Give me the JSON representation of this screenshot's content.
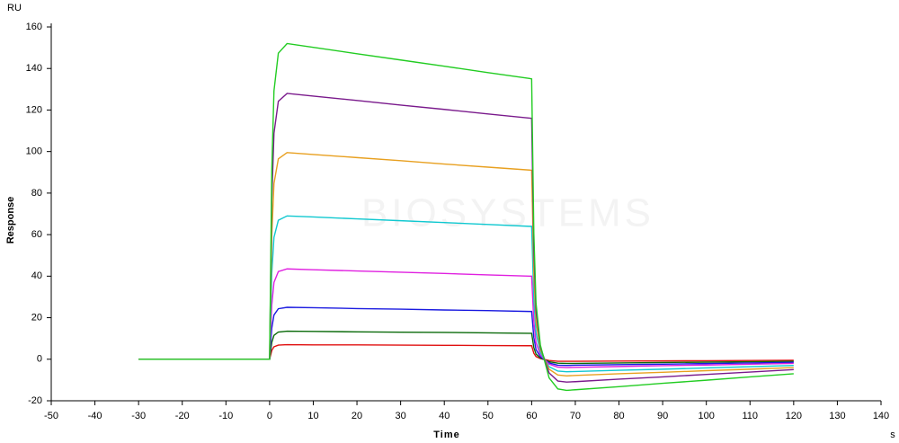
{
  "chart_data": {
    "type": "line",
    "y_unit": "RU",
    "y_label": "Response",
    "x_label": "Time",
    "x_unit": "s",
    "watermark": "BIOSYSTEMS",
    "xlim": [
      -50,
      140
    ],
    "xticks": [
      -50,
      -40,
      -30,
      -20,
      -10,
      0,
      10,
      20,
      30,
      40,
      50,
      60,
      70,
      80,
      90,
      100,
      110,
      120,
      130,
      140
    ],
    "ylim": [
      -20,
      160
    ],
    "yticks": [
      -20,
      0,
      20,
      40,
      60,
      80,
      100,
      120,
      140,
      160
    ],
    "x": [
      -30,
      -1,
      0,
      0.5,
      1,
      2,
      4,
      10,
      20,
      30,
      40,
      50,
      59.5,
      60,
      60.5,
      61,
      62,
      64,
      66,
      68,
      70,
      80,
      90,
      100,
      110,
      120
    ],
    "series": [
      {
        "color": "#22cc22",
        "values": [
          0,
          0,
          0,
          91.2,
          129.2,
          147.4,
          152,
          150.2,
          147.1,
          144.1,
          141.1,
          138.0,
          135.2,
          135,
          60.8,
          27,
          6.8,
          -9,
          -14.3,
          -15,
          -14.7,
          -13.2,
          -11.6,
          -10.1,
          -8.5,
          -7
        ]
      },
      {
        "color": "#7a1a8c",
        "values": [
          0,
          0,
          0,
          76.8,
          108.8,
          124.2,
          128,
          126.7,
          124.6,
          122.4,
          120.3,
          118.1,
          116.1,
          116,
          52.2,
          23.2,
          5.8,
          -6.6,
          -10.5,
          -11,
          -10.8,
          -9.6,
          -8.5,
          -7.3,
          -6.2,
          -5
        ]
      },
      {
        "color": "#e8a020",
        "values": [
          0,
          0,
          0,
          59.7,
          84.6,
          96.5,
          99.5,
          98.6,
          97.1,
          95.6,
          94.0,
          92.5,
          91.1,
          91,
          41,
          18.2,
          4.6,
          -4.8,
          -7.6,
          -8,
          -7.8,
          -7.0,
          -6.3,
          -5.5,
          -4.8,
          -4
        ]
      },
      {
        "color": "#10c8d0",
        "values": [
          0,
          0,
          0,
          41.4,
          58.7,
          66.9,
          69,
          68.5,
          67.6,
          66.7,
          65.8,
          64.9,
          64.0,
          64,
          28.8,
          12.8,
          3.2,
          -3.6,
          -5.7,
          -6,
          -5.9,
          -5.3,
          -4.8,
          -4.2,
          -3.6,
          -3
        ]
      },
      {
        "color": "#e020e0",
        "values": [
          0,
          0,
          0,
          26.1,
          37.0,
          42.2,
          43.5,
          43.1,
          42.5,
          41.9,
          41.3,
          40.6,
          40.0,
          40,
          18,
          8,
          2,
          -2.4,
          -3.8,
          -4,
          -3.9,
          -3.5,
          -3.1,
          -2.8,
          -2.4,
          -2
        ]
      },
      {
        "color": "#1a1ae0",
        "values": [
          0,
          0,
          0,
          15,
          21.3,
          24.3,
          25,
          24.8,
          24.4,
          24.1,
          23.7,
          23.4,
          23.0,
          23,
          10.4,
          4.6,
          1.2,
          -1.8,
          -2.9,
          -3,
          -2.9,
          -2.6,
          -2.4,
          -2.1,
          -1.8,
          -1.5
        ]
      },
      {
        "color": "#0a6a0a",
        "values": [
          0,
          0,
          0,
          8.1,
          11.5,
          13.1,
          13.5,
          13.4,
          13.2,
          13.0,
          12.9,
          12.7,
          12.5,
          12.5,
          5.6,
          2.5,
          0.6,
          -1.2,
          -1.9,
          -2,
          -2,
          -1.8,
          -1.6,
          -1.4,
          -1.2,
          -1
        ]
      },
      {
        "color": "#e01010",
        "values": [
          0,
          0,
          0,
          4.2,
          6,
          6.8,
          7,
          6.9,
          6.9,
          6.8,
          6.7,
          6.6,
          6.5,
          6.5,
          2.9,
          1.3,
          0.3,
          -0.6,
          -1,
          -1,
          -1,
          -0.9,
          -0.8,
          -0.7,
          -0.6,
          -0.5
        ]
      }
    ]
  }
}
